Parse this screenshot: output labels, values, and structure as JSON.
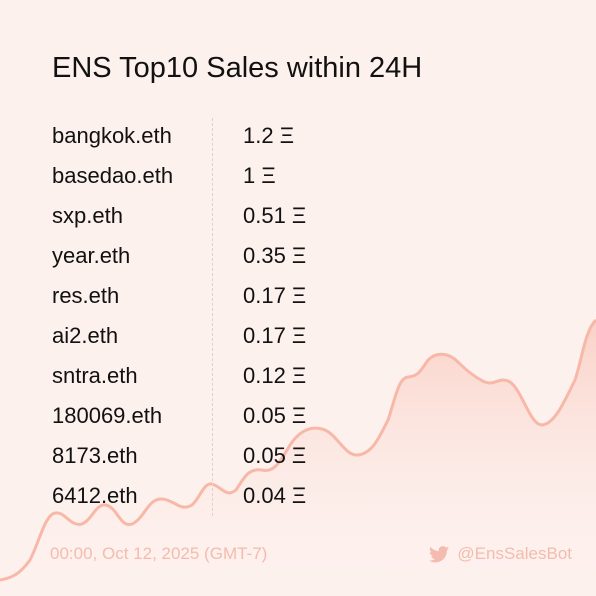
{
  "title": "ENS Top10 Sales within 24H",
  "table": {
    "rows": [
      [
        "bangkok.eth",
        "1.2 Ξ"
      ],
      [
        "basedao.eth",
        "1 Ξ"
      ],
      [
        "sxp.eth",
        "0.51 Ξ"
      ],
      [
        "year.eth",
        "0.35 Ξ"
      ],
      [
        "res.eth",
        "0.17 Ξ"
      ],
      [
        "ai2.eth",
        "0.17 Ξ"
      ],
      [
        "sntra.eth",
        "0.12 Ξ"
      ],
      [
        "180069.eth",
        "0.05 Ξ"
      ],
      [
        "8173.eth",
        "0.05 Ξ"
      ],
      [
        "6412.eth",
        "0.04 Ξ"
      ]
    ]
  },
  "footer": {
    "timestamp": "00:00, Oct 12, 2025 (GMT-7)",
    "handle": "@EnsSalesBot"
  }
}
